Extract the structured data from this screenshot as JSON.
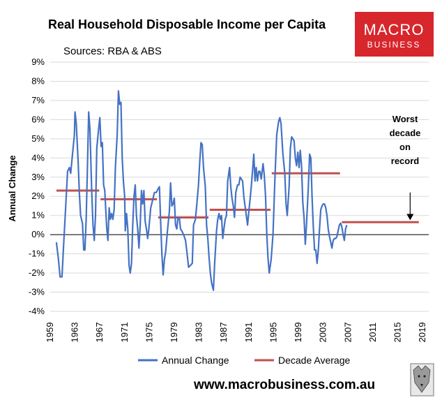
{
  "header": {
    "title": "Real Household Disposable Income per Capita",
    "subtitle": "Sources: RBA & ABS"
  },
  "logo": {
    "line1": "MACRO",
    "line2": "BUSINESS",
    "color": "#d7262c"
  },
  "footer": {
    "url": "www.macrobusiness.com.au"
  },
  "chart_data": {
    "type": "line",
    "ylabel": "Annual Change",
    "ylim": [
      -4,
      9
    ],
    "xlim": [
      1959,
      2020
    ],
    "grid": "horizontal",
    "legend_position": "bottom",
    "x_ticks": [
      "1959",
      "1963",
      "1967",
      "1971",
      "1975",
      "1979",
      "1983",
      "1987",
      "1991",
      "1995",
      "1999",
      "2003",
      "2007",
      "2011",
      "2015",
      "2019"
    ],
    "y_ticks": [
      "9%",
      "8%",
      "7%",
      "6%",
      "5%",
      "4%",
      "3%",
      "2%",
      "1%",
      "0%",
      "-1%",
      "-2%",
      "-3%",
      "-4%"
    ],
    "series": [
      {
        "name": "Annual Change",
        "color": "#4472c4",
        "points": [
          [
            1960.0,
            -0.4
          ],
          [
            1960.3,
            -1.2
          ],
          [
            1960.6,
            -2.2
          ],
          [
            1960.9,
            -2.2
          ],
          [
            1961.2,
            -0.3
          ],
          [
            1961.5,
            1.5
          ],
          [
            1961.8,
            3.3
          ],
          [
            1962.1,
            3.5
          ],
          [
            1962.3,
            3.2
          ],
          [
            1962.6,
            4.2
          ],
          [
            1962.9,
            5.2
          ],
          [
            1963.0,
            6.4
          ],
          [
            1963.2,
            5.8
          ],
          [
            1963.5,
            3.8
          ],
          [
            1963.7,
            2.2
          ],
          [
            1963.9,
            1.0
          ],
          [
            1964.2,
            0.6
          ],
          [
            1964.4,
            -0.8
          ],
          [
            1964.6,
            -0.8
          ],
          [
            1964.8,
            0.8
          ],
          [
            1965.0,
            3.5
          ],
          [
            1965.2,
            6.4
          ],
          [
            1965.4,
            5.5
          ],
          [
            1965.7,
            2.2
          ],
          [
            1965.9,
            0.5
          ],
          [
            1966.1,
            -0.3
          ],
          [
            1966.3,
            1.0
          ],
          [
            1966.5,
            4.5
          ],
          [
            1966.8,
            5.5
          ],
          [
            1967.0,
            6.1
          ],
          [
            1967.2,
            4.6
          ],
          [
            1967.4,
            4.8
          ],
          [
            1967.6,
            2.6
          ],
          [
            1967.8,
            2.3
          ],
          [
            1968.1,
            0.4
          ],
          [
            1968.3,
            -0.3
          ],
          [
            1968.5,
            1.4
          ],
          [
            1968.7,
            0.8
          ],
          [
            1968.9,
            1.1
          ],
          [
            1969.1,
            0.8
          ],
          [
            1969.3,
            1.3
          ],
          [
            1969.5,
            3.5
          ],
          [
            1969.8,
            5.2
          ],
          [
            1970.0,
            7.5
          ],
          [
            1970.2,
            6.8
          ],
          [
            1970.4,
            6.9
          ],
          [
            1970.6,
            4.0
          ],
          [
            1970.8,
            2.8
          ],
          [
            1971.0,
            2.0
          ],
          [
            1971.1,
            0.2
          ],
          [
            1971.3,
            1.1
          ],
          [
            1971.5,
            0.3
          ],
          [
            1971.7,
            -1.6
          ],
          [
            1971.9,
            -2.0
          ],
          [
            1972.1,
            -1.5
          ],
          [
            1972.3,
            0.5
          ],
          [
            1972.5,
            2.0
          ],
          [
            1972.7,
            2.6
          ],
          [
            1972.9,
            1.0
          ],
          [
            1973.1,
            0.3
          ],
          [
            1973.3,
            -0.7
          ],
          [
            1973.5,
            0.5
          ],
          [
            1973.7,
            2.3
          ],
          [
            1973.9,
            1.6
          ],
          [
            1974.1,
            2.3
          ],
          [
            1974.3,
            0.7
          ],
          [
            1974.5,
            0.3
          ],
          [
            1974.7,
            -0.2
          ],
          [
            1974.9,
            0.3
          ],
          [
            1975.2,
            1.4
          ],
          [
            1975.5,
            1.8
          ],
          [
            1975.8,
            2.2
          ],
          [
            1976.1,
            2.2
          ],
          [
            1976.4,
            2.4
          ],
          [
            1976.6,
            2.5
          ],
          [
            1976.8,
            0.7
          ],
          [
            1977.0,
            -1.0
          ],
          [
            1977.2,
            -2.1
          ],
          [
            1977.4,
            -1.3
          ],
          [
            1977.6,
            -0.9
          ],
          [
            1977.9,
            0.2
          ],
          [
            1978.2,
            1.2
          ],
          [
            1978.4,
            2.7
          ],
          [
            1978.6,
            1.5
          ],
          [
            1978.8,
            1.6
          ],
          [
            1979.0,
            1.9
          ],
          [
            1979.2,
            0.5
          ],
          [
            1979.4,
            0.3
          ],
          [
            1979.6,
            0.9
          ],
          [
            1979.8,
            0.9
          ],
          [
            1980.0,
            0.3
          ],
          [
            1980.2,
            0.2
          ],
          [
            1980.5,
            0.0
          ],
          [
            1980.8,
            -0.3
          ],
          [
            1981.0,
            -0.8
          ],
          [
            1981.3,
            -1.7
          ],
          [
            1981.6,
            -1.6
          ],
          [
            1981.9,
            -1.5
          ],
          [
            1982.1,
            0.5
          ],
          [
            1982.4,
            0.8
          ],
          [
            1982.6,
            1.5
          ],
          [
            1982.9,
            2.6
          ],
          [
            1983.1,
            3.8
          ],
          [
            1983.3,
            4.8
          ],
          [
            1983.5,
            4.7
          ],
          [
            1983.7,
            3.5
          ],
          [
            1984.0,
            2.5
          ],
          [
            1984.2,
            0.5
          ],
          [
            1984.4,
            -0.2
          ],
          [
            1984.6,
            -1.2
          ],
          [
            1984.8,
            -2.0
          ],
          [
            1985.0,
            -2.5
          ],
          [
            1985.3,
            -2.9
          ],
          [
            1985.5,
            -1.5
          ],
          [
            1985.8,
            0.2
          ],
          [
            1986.0,
            0.8
          ],
          [
            1986.2,
            1.1
          ],
          [
            1986.4,
            0.8
          ],
          [
            1986.6,
            1.0
          ],
          [
            1986.8,
            -0.2
          ],
          [
            1987.0,
            0.3
          ],
          [
            1987.2,
            0.8
          ],
          [
            1987.4,
            1.0
          ],
          [
            1987.6,
            2.8
          ],
          [
            1987.9,
            3.5
          ],
          [
            1988.1,
            2.5
          ],
          [
            1988.3,
            1.9
          ],
          [
            1988.5,
            1.5
          ],
          [
            1988.7,
            0.9
          ],
          [
            1988.9,
            2.2
          ],
          [
            1989.2,
            2.6
          ],
          [
            1989.4,
            2.6
          ],
          [
            1989.6,
            3.0
          ],
          [
            1989.8,
            2.9
          ],
          [
            1990.0,
            2.8
          ],
          [
            1990.2,
            2.0
          ],
          [
            1990.4,
            1.5
          ],
          [
            1990.6,
            1.0
          ],
          [
            1990.8,
            0.5
          ],
          [
            1991.0,
            1.2
          ],
          [
            1991.2,
            1.8
          ],
          [
            1991.4,
            2.5
          ],
          [
            1991.6,
            3.3
          ],
          [
            1991.8,
            4.2
          ],
          [
            1992.0,
            2.8
          ],
          [
            1992.2,
            3.5
          ],
          [
            1992.4,
            2.8
          ],
          [
            1992.6,
            3.3
          ],
          [
            1992.8,
            3.3
          ],
          [
            1993.0,
            2.9
          ],
          [
            1993.3,
            3.7
          ],
          [
            1993.5,
            3.1
          ],
          [
            1993.7,
            2.0
          ],
          [
            1993.9,
            0.0
          ],
          [
            1994.1,
            -1.2
          ],
          [
            1994.3,
            -2.0
          ],
          [
            1994.6,
            -1.3
          ],
          [
            1994.9,
            0.0
          ],
          [
            1995.2,
            2.8
          ],
          [
            1995.5,
            5.2
          ],
          [
            1995.8,
            5.9
          ],
          [
            1996.0,
            6.1
          ],
          [
            1996.2,
            5.8
          ],
          [
            1996.5,
            4.2
          ],
          [
            1996.8,
            3.2
          ],
          [
            1997.0,
            1.6
          ],
          [
            1997.2,
            1.0
          ],
          [
            1997.5,
            2.5
          ],
          [
            1997.7,
            4.5
          ],
          [
            1997.9,
            5.1
          ],
          [
            1998.1,
            5.0
          ],
          [
            1998.3,
            4.9
          ],
          [
            1998.5,
            4.0
          ],
          [
            1998.7,
            3.6
          ],
          [
            1998.9,
            4.3
          ],
          [
            1999.1,
            3.5
          ],
          [
            1999.3,
            4.4
          ],
          [
            1999.5,
            3.6
          ],
          [
            1999.7,
            1.7
          ],
          [
            1999.9,
            0.9
          ],
          [
            2000.1,
            -0.5
          ],
          [
            2000.3,
            0.5
          ],
          [
            2000.6,
            2.5
          ],
          [
            2000.8,
            4.2
          ],
          [
            2001.0,
            4.0
          ],
          [
            2001.2,
            2.0
          ],
          [
            2001.4,
            0.4
          ],
          [
            2001.6,
            -0.8
          ],
          [
            2001.8,
            -0.8
          ],
          [
            2002.0,
            -1.5
          ],
          [
            2002.2,
            -0.8
          ],
          [
            2002.4,
            0.3
          ],
          [
            2002.6,
            1.3
          ],
          [
            2002.8,
            1.5
          ],
          [
            2003.0,
            1.6
          ],
          [
            2003.2,
            1.6
          ],
          [
            2003.4,
            1.4
          ],
          [
            2003.6,
            1.0
          ],
          [
            2003.8,
            0.3
          ],
          [
            2004.0,
            -0.1
          ],
          [
            2004.2,
            -0.4
          ],
          [
            2004.4,
            -0.7
          ],
          [
            2004.6,
            -0.3
          ],
          [
            2004.8,
            -0.2
          ],
          [
            2005.0,
            -0.2
          ],
          [
            2005.2,
            -0.1
          ],
          [
            2005.4,
            0.2
          ],
          [
            2005.6,
            0.5
          ],
          [
            2005.8,
            0.6
          ],
          [
            2006.0,
            0.4
          ],
          [
            2006.2,
            0.0
          ],
          [
            2006.4,
            -0.3
          ],
          [
            2006.6,
            0.3
          ],
          [
            2006.8,
            0.5
          ]
        ]
      },
      {
        "name": "Decade Average",
        "color": "#c0504d",
        "segments": [
          {
            "from": 1960,
            "to": 1966.9,
            "value": 2.3
          },
          {
            "from": 1967.1,
            "to": 1976.2,
            "value": 1.85
          },
          {
            "from": 1976.4,
            "to": 1984.5,
            "value": 0.9
          },
          {
            "from": 1984.7,
            "to": 1994.5,
            "value": 1.3
          },
          {
            "from": 1994.7,
            "to": 2005.7,
            "value": 3.2
          },
          {
            "from": 2006.0,
            "to": 2018.4,
            "value": 0.65
          }
        ]
      }
    ],
    "annotation": {
      "lines": [
        "Worst",
        "decade",
        "on",
        "record"
      ],
      "arrow_x": 2017,
      "arrow_from_y": 2.2,
      "arrow_to_y": 0.75
    }
  }
}
